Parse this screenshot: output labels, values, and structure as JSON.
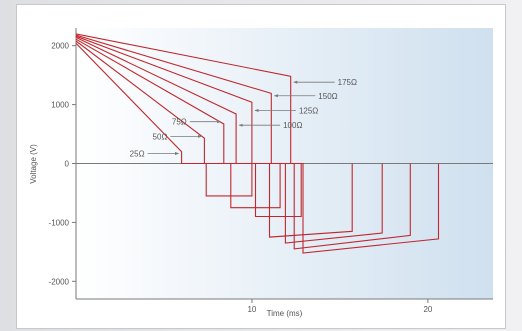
{
  "chart_data": {
    "type": "line",
    "xlabel": "Time (ms)",
    "ylabel": "Voltage (V)",
    "xlim": [
      0,
      23.7
    ],
    "ylim": [
      -2300,
      2300
    ],
    "x_ticks": [
      10,
      20
    ],
    "y_ticks": [
      2000,
      1000,
      0,
      -1000,
      -2000
    ],
    "grid": false,
    "colors": {
      "line": "#c1272d",
      "plot_bg_left": "#ffffff",
      "plot_bg_right": "#cfe0ef",
      "axis": "#7a7a7a"
    },
    "series": [
      {
        "name": "25Ω",
        "values": [
          [
            0,
            2040
          ],
          [
            6.0,
            200
          ],
          [
            6.0,
            0
          ],
          [
            7.4,
            0
          ],
          [
            7.4,
            -550
          ],
          [
            10.0,
            -550
          ],
          [
            10.0,
            0
          ]
        ]
      },
      {
        "name": "50Ω",
        "values": [
          [
            0,
            2080
          ],
          [
            7.3,
            430
          ],
          [
            7.3,
            0
          ],
          [
            8.8,
            0
          ],
          [
            8.8,
            -750
          ],
          [
            11.6,
            -750
          ],
          [
            11.6,
            0
          ]
        ]
      },
      {
        "name": "75Ω",
        "values": [
          [
            0,
            2110
          ],
          [
            8.4,
            670
          ],
          [
            8.4,
            0
          ],
          [
            10.2,
            0
          ],
          [
            10.2,
            -900
          ],
          [
            12.8,
            -900
          ],
          [
            12.8,
            0
          ]
        ]
      },
      {
        "name": "100Ω",
        "values": [
          [
            0,
            2140
          ],
          [
            9.1,
            840
          ],
          [
            9.1,
            0
          ],
          [
            11.0,
            0
          ],
          [
            11.0,
            -1250
          ],
          [
            15.7,
            -1150
          ],
          [
            15.7,
            0
          ]
        ]
      },
      {
        "name": "125Ω",
        "values": [
          [
            0,
            2160
          ],
          [
            10.0,
            1040
          ],
          [
            10.0,
            0
          ],
          [
            11.9,
            0
          ],
          [
            11.9,
            -1350
          ],
          [
            17.4,
            -1180
          ],
          [
            17.4,
            0
          ]
        ]
      },
      {
        "name": "150Ω",
        "values": [
          [
            0,
            2180
          ],
          [
            11.1,
            1190
          ],
          [
            11.1,
            0
          ],
          [
            12.4,
            0
          ],
          [
            12.4,
            -1450
          ],
          [
            19.0,
            -1220
          ],
          [
            19.0,
            0
          ]
        ]
      },
      {
        "name": "175Ω",
        "values": [
          [
            0,
            2200
          ],
          [
            12.2,
            1480
          ],
          [
            12.2,
            0
          ],
          [
            12.9,
            0
          ],
          [
            12.9,
            -1520
          ],
          [
            20.6,
            -1280
          ],
          [
            20.6,
            0
          ]
        ]
      }
    ],
    "annotations": [
      {
        "label": "175Ω",
        "side": "right",
        "arrow_to": [
          12.2,
          1380
        ]
      },
      {
        "label": "150Ω",
        "side": "right",
        "arrow_to": [
          11.1,
          1150
        ]
      },
      {
        "label": "125Ω",
        "side": "right",
        "arrow_to": [
          10.0,
          900
        ]
      },
      {
        "label": "100Ω",
        "side": "right",
        "arrow_to": [
          9.1,
          650
        ]
      },
      {
        "label": "75Ω",
        "side": "left",
        "arrow_to": [
          8.4,
          710
        ]
      },
      {
        "label": "50Ω",
        "side": "left",
        "arrow_to": [
          7.3,
          460
        ]
      },
      {
        "label": "25Ω",
        "side": "left",
        "arrow_to": [
          6.0,
          170
        ]
      }
    ]
  }
}
